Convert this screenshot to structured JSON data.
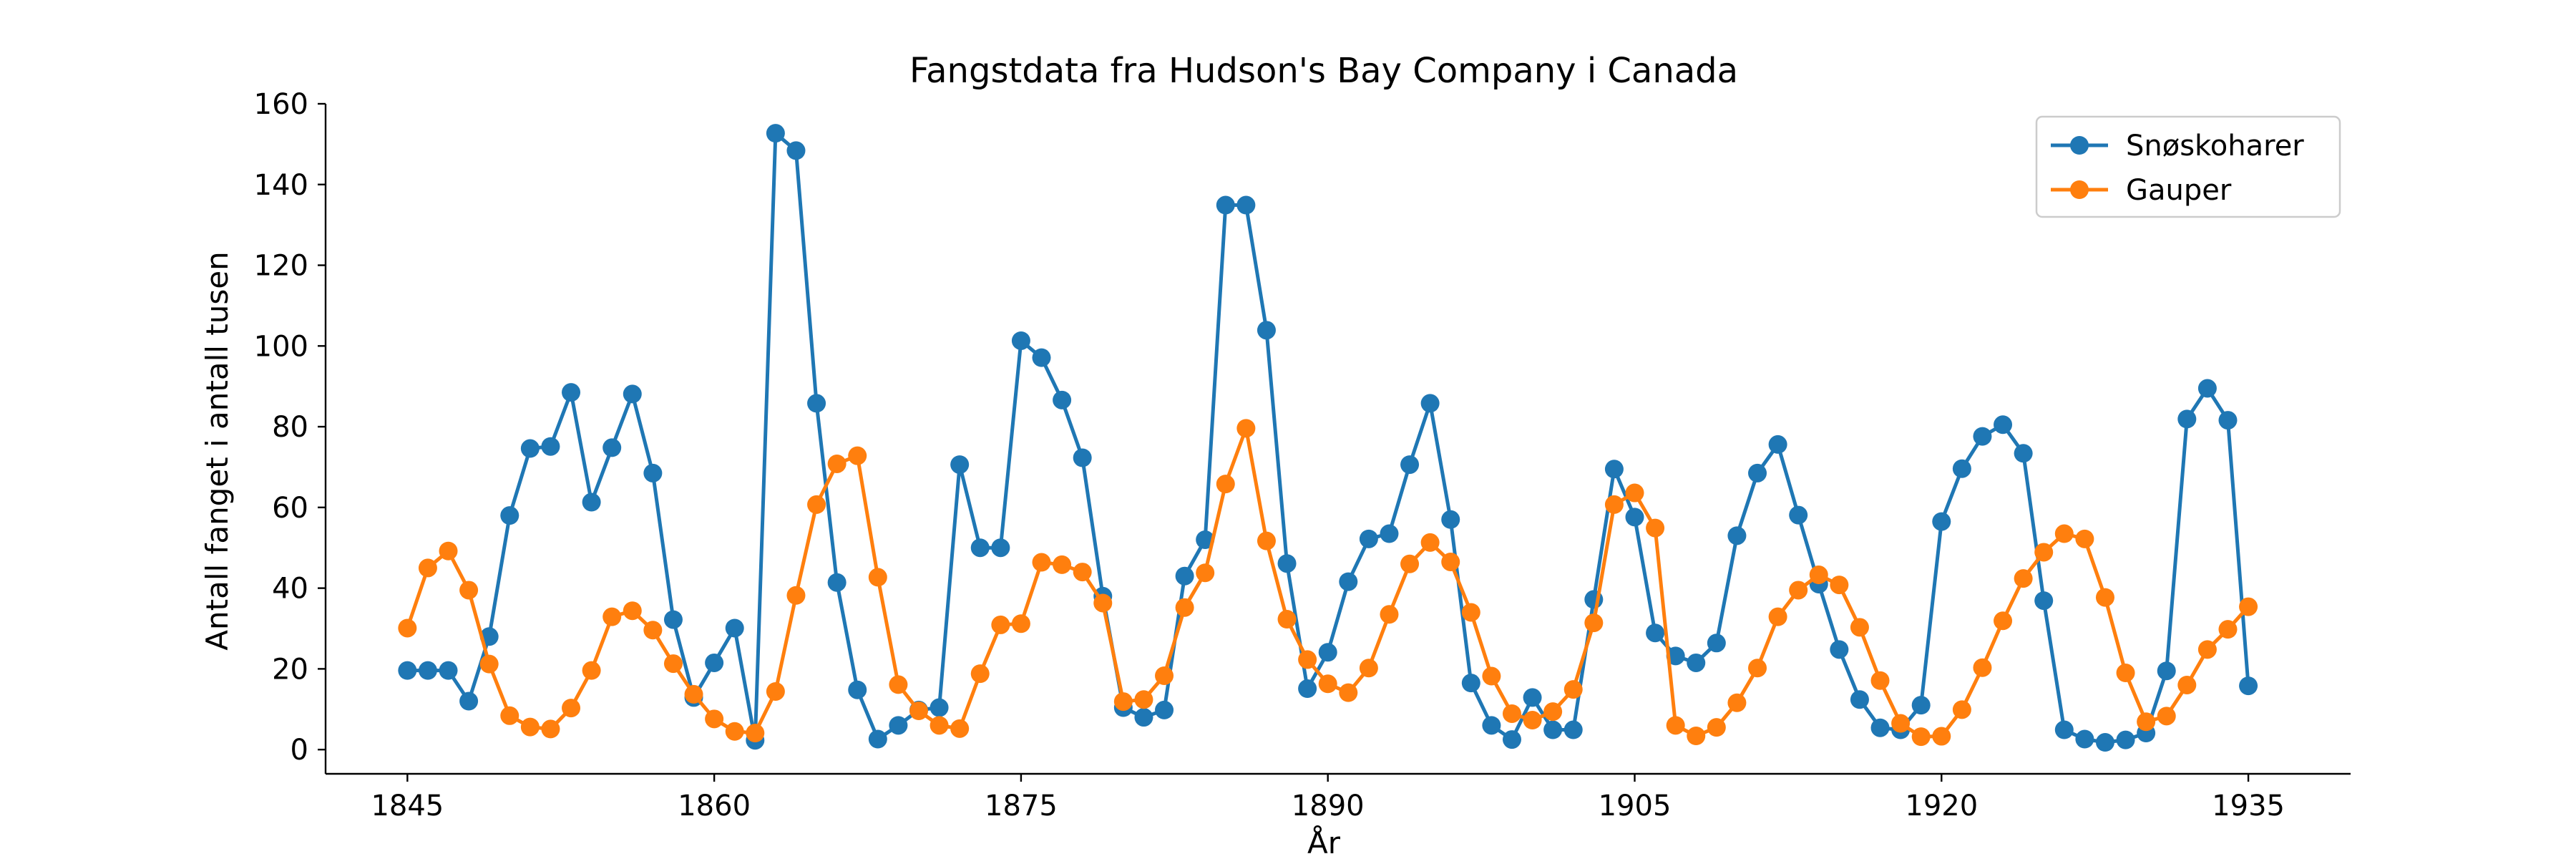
{
  "chart_data": {
    "type": "line",
    "title": "Fangstdata fra Hudson's Bay Company i Canada",
    "xlabel": "År",
    "ylabel": "Antall fanget i antall tusen",
    "xlim": [
      1841,
      1940
    ],
    "ylim": [
      -6,
      160
    ],
    "xticks": [
      1845,
      1860,
      1875,
      1890,
      1905,
      1920,
      1935
    ],
    "yticks": [
      0,
      20,
      40,
      60,
      80,
      100,
      120,
      140,
      160
    ],
    "grid": false,
    "legend": "top-right",
    "x": [
      1845,
      1846,
      1847,
      1848,
      1849,
      1850,
      1851,
      1852,
      1853,
      1854,
      1855,
      1856,
      1857,
      1858,
      1859,
      1860,
      1861,
      1862,
      1863,
      1864,
      1865,
      1866,
      1867,
      1868,
      1869,
      1870,
      1871,
      1872,
      1873,
      1874,
      1875,
      1876,
      1877,
      1878,
      1879,
      1880,
      1881,
      1882,
      1883,
      1884,
      1885,
      1886,
      1887,
      1888,
      1889,
      1890,
      1891,
      1892,
      1893,
      1894,
      1895,
      1896,
      1897,
      1898,
      1899,
      1900,
      1901,
      1902,
      1903,
      1904,
      1905,
      1906,
      1907,
      1908,
      1909,
      1910,
      1911,
      1912,
      1913,
      1914,
      1915,
      1916,
      1917,
      1918,
      1919,
      1920,
      1921,
      1922,
      1923,
      1924,
      1925,
      1926,
      1927,
      1928,
      1929,
      1930,
      1931,
      1932,
      1933,
      1934,
      1935
    ],
    "series": [
      {
        "name": "Snøskoharer",
        "color": "#1f77b4",
        "values": [
          19.6,
          19.6,
          19.6,
          12.0,
          28.0,
          58.0,
          74.6,
          75.1,
          88.5,
          61.3,
          74.8,
          88.1,
          68.5,
          32.2,
          12.9,
          21.5,
          30.1,
          2.3,
          152.7,
          148.4,
          85.8,
          41.4,
          14.8,
          2.6,
          6.0,
          9.8,
          10.4,
          70.6,
          50.0,
          50.0,
          101.3,
          97.1,
          86.6,
          72.3,
          38.0,
          10.4,
          8.0,
          9.8,
          43.0,
          52.0,
          134.9,
          134.9,
          103.9,
          46.1,
          15.1,
          24.1,
          41.6,
          52.2,
          53.5,
          70.6,
          85.8,
          57.0,
          16.5,
          6.0,
          2.5,
          12.9,
          4.9,
          4.9,
          37.2,
          69.5,
          57.6,
          28.9,
          23.2,
          21.5,
          26.4,
          53.0,
          68.5,
          75.6,
          58.1,
          41.0,
          24.8,
          12.4,
          5.4,
          4.9,
          11.0,
          56.5,
          69.6,
          77.6,
          80.5,
          73.4,
          36.9,
          4.9,
          2.6,
          1.8,
          2.4,
          4.1,
          19.5,
          81.9,
          89.5,
          81.6,
          15.8
        ]
      },
      {
        "name": "Gauper",
        "color": "#ff7f0e",
        "values": [
          30.1,
          45.0,
          49.2,
          39.5,
          21.2,
          8.4,
          5.6,
          5.1,
          10.3,
          19.6,
          32.9,
          34.4,
          29.6,
          21.3,
          13.7,
          7.6,
          4.5,
          4.1,
          14.4,
          38.2,
          60.7,
          70.8,
          72.8,
          42.7,
          16.1,
          9.6,
          6.0,
          5.2,
          18.8,
          30.9,
          31.2,
          46.4,
          45.8,
          44.0,
          36.3,
          11.9,
          12.4,
          18.3,
          35.2,
          43.8,
          65.8,
          79.6,
          51.7,
          32.3,
          22.3,
          16.3,
          14.1,
          20.2,
          33.5,
          46.0,
          51.3,
          46.5,
          34.0,
          18.2,
          8.9,
          7.3,
          9.4,
          14.9,
          31.4,
          60.7,
          63.6,
          54.9,
          6.0,
          3.4,
          5.5,
          11.6,
          20.2,
          32.9,
          39.5,
          43.3,
          40.8,
          30.3,
          17.1,
          6.5,
          3.2,
          3.3,
          9.9,
          20.3,
          31.9,
          42.4,
          48.9,
          53.5,
          52.2,
          37.7,
          19.0,
          6.9,
          8.3,
          16.0,
          24.8,
          29.8,
          35.4
        ]
      }
    ]
  }
}
